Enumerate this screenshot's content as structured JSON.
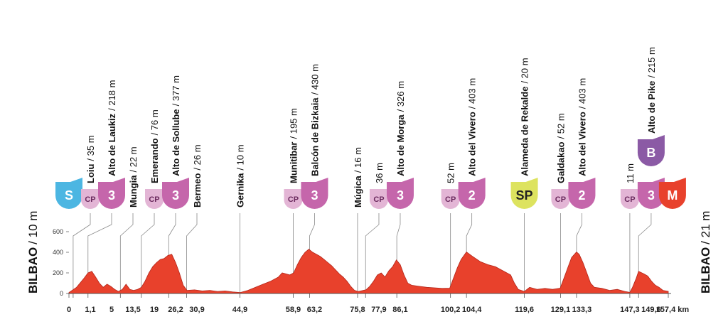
{
  "chart_data": {
    "type": "profile",
    "start_label": {
      "name": "BILBAO",
      "alt": "/ 10 m"
    },
    "finish_label": {
      "name": "BILBAO",
      "alt": "/ 21 m"
    },
    "color": "#e8412c",
    "xlim": [
      0,
      157.4
    ],
    "ylim": [
      0,
      600
    ],
    "yticks": [
      0,
      200,
      400,
      600
    ],
    "xticks": [
      0,
      {
        "value": 1.1,
        "label": "1,1"
      },
      5,
      {
        "value": 13.5,
        "label": "13,5"
      },
      19,
      {
        "value": 26.2,
        "label": "26,2"
      },
      {
        "value": 30.9,
        "label": "30,9"
      },
      {
        "value": 44.9,
        "label": "44,9"
      },
      {
        "value": 58.9,
        "label": "58,9"
      },
      {
        "value": 63.2,
        "label": "63,2"
      },
      {
        "value": 75.8,
        "label": "75,8"
      },
      {
        "value": 77.9,
        "label": "77,9"
      },
      {
        "value": 86.1,
        "label": "86,1"
      },
      {
        "value": 100.2,
        "label": "100,2"
      },
      {
        "value": 104.4,
        "label": "104,4"
      },
      {
        "value": 119.6,
        "label": "119,6"
      },
      {
        "value": 129.1,
        "label": "129,1"
      },
      {
        "value": 133.3,
        "label": "133,3"
      },
      {
        "value": 147.3,
        "label": "147,3"
      },
      {
        "value": 149.6,
        "label": "149,6"
      },
      {
        "value": 157.4,
        "label": "157,4 km"
      }
    ],
    "waypoints": [
      {
        "name": null,
        "alt": null,
        "badge": {
          "text": "S",
          "color": "#4cb6e2",
          "text_color": "#ffffff",
          "small": false
        }
      },
      {
        "name": "Loiu",
        "alt": "/ 35 m",
        "badge": {
          "text": "CP",
          "color": "#e3b5d5",
          "text_color": "#6b2a5e",
          "small": true
        }
      },
      {
        "name": "Alto de Laukiz",
        "alt": "/ 218 m",
        "badge": {
          "text": "3",
          "color": "#c566ab",
          "text_color": "#ffffff",
          "small": false
        }
      },
      {
        "name": "Mungia",
        "alt": "/ 22 m",
        "badge": null
      },
      {
        "name": "Emerando",
        "alt": "/ 76 m",
        "badge": {
          "text": "CP",
          "color": "#e3b5d5",
          "text_color": "#6b2a5e",
          "small": true
        }
      },
      {
        "name": "Alto de Sollube",
        "alt": "/ 377 m",
        "badge": {
          "text": "3",
          "color": "#c566ab",
          "text_color": "#ffffff",
          "small": false
        }
      },
      {
        "name": "Bermeo",
        "alt": "/ 26 m",
        "badge": null
      },
      {
        "name": "Gernika",
        "alt": "/ 10 m",
        "badge": null
      },
      {
        "name": "Munitibar",
        "alt": "/ 195 m",
        "badge": {
          "text": "CP",
          "color": "#e3b5d5",
          "text_color": "#6b2a5e",
          "small": true
        }
      },
      {
        "name": "Balcón de Bizkaia",
        "alt": "/ 430 m",
        "badge": {
          "text": "3",
          "color": "#c566ab",
          "text_color": "#ffffff",
          "small": false
        }
      },
      {
        "name": "Múgica",
        "alt": "/ 16 m",
        "badge": null
      },
      {
        "name": null,
        "alt": "36 m",
        "badge": {
          "text": "CP",
          "color": "#e3b5d5",
          "text_color": "#6b2a5e",
          "small": true
        }
      },
      {
        "name": "Alto de Morga",
        "alt": "/ 326 m",
        "badge": {
          "text": "3",
          "color": "#c566ab",
          "text_color": "#ffffff",
          "small": false
        }
      },
      {
        "name": null,
        "alt": "52 m",
        "badge": {
          "text": "CP",
          "color": "#e3b5d5",
          "text_color": "#6b2a5e",
          "small": true
        }
      },
      {
        "name": "Alto del Vivero",
        "alt": "/ 403 m",
        "badge": {
          "text": "2",
          "color": "#c566ab",
          "text_color": "#ffffff",
          "small": false
        }
      },
      {
        "name": "Alameda de Rekalde",
        "alt": "/ 20 m",
        "badge": {
          "text": "SP",
          "color": "#dde35f",
          "text_color": "#222222",
          "small": false
        }
      },
      {
        "name": "Galdakao",
        "alt": "/ 52 m",
        "badge": {
          "text": "CP",
          "color": "#e3b5d5",
          "text_color": "#6b2a5e",
          "small": true
        }
      },
      {
        "name": "Alto del Vivero",
        "alt": "/ 403 m",
        "badge": {
          "text": "2",
          "color": "#c566ab",
          "text_color": "#ffffff",
          "small": false
        }
      },
      {
        "name": null,
        "alt": "11 m",
        "badge": {
          "text": "CP",
          "color": "#e3b5d5",
          "text_color": "#6b2a5e",
          "small": true
        }
      },
      {
        "name": "Alto de Pike",
        "alt": "/ 215 m",
        "badge": {
          "text": "3",
          "color": "#c566ab",
          "text_color": "#ffffff",
          "small": false
        },
        "top_badge": {
          "text": "B",
          "color": "#8b5aa5",
          "text_color": "#ffffff",
          "small": false
        }
      },
      {
        "name": null,
        "alt": null,
        "badge": {
          "text": "M",
          "color": "#e8412c",
          "text_color": "#ffffff",
          "small": false
        }
      }
    ],
    "profile": {
      "km": [
        0,
        2,
        4,
        5,
        6,
        7,
        8,
        9,
        10,
        11,
        12,
        13,
        14,
        15,
        16,
        17,
        18,
        19,
        20,
        21,
        22,
        23,
        24,
        25,
        26,
        27,
        28,
        29,
        30,
        31,
        33,
        35,
        37,
        39,
        41,
        43,
        45,
        47,
        49,
        51,
        53,
        55,
        56,
        57,
        58,
        59,
        60,
        61,
        62,
        63,
        64,
        65,
        66,
        67,
        68,
        69,
        70,
        71,
        72,
        73,
        74,
        75,
        76,
        78,
        79,
        80,
        81,
        82,
        83,
        84,
        85,
        86,
        87,
        88,
        89,
        90,
        92,
        94,
        96,
        98,
        100,
        101,
        102,
        103,
        104.4,
        106,
        108,
        110,
        112,
        114,
        116,
        117,
        118,
        119.6,
        121,
        123,
        125,
        127,
        129,
        130,
        131,
        132,
        133.3,
        134,
        135,
        136,
        137,
        138,
        140,
        142,
        144,
        146,
        147.3,
        148,
        149,
        149.6,
        151,
        152,
        153,
        154,
        155,
        156,
        157.4
      ],
      "elevation": [
        10,
        60,
        150,
        200,
        215,
        160,
        100,
        60,
        90,
        70,
        40,
        20,
        40,
        90,
        40,
        30,
        40,
        60,
        120,
        200,
        260,
        300,
        330,
        340,
        370,
        380,
        300,
        200,
        80,
        30,
        35,
        25,
        30,
        20,
        25,
        15,
        10,
        30,
        60,
        90,
        120,
        160,
        200,
        190,
        180,
        200,
        280,
        350,
        400,
        430,
        400,
        380,
        360,
        330,
        300,
        270,
        230,
        190,
        160,
        120,
        70,
        30,
        20,
        36,
        70,
        120,
        180,
        200,
        160,
        220,
        260,
        326,
        280,
        180,
        100,
        80,
        70,
        60,
        55,
        50,
        52,
        150,
        250,
        330,
        403,
        360,
        310,
        280,
        260,
        220,
        180,
        100,
        40,
        20,
        60,
        40,
        50,
        40,
        52,
        150,
        250,
        350,
        403,
        380,
        300,
        200,
        100,
        60,
        50,
        30,
        40,
        20,
        11,
        60,
        150,
        215,
        190,
        170,
        120,
        80,
        60,
        30,
        21
      ]
    }
  }
}
